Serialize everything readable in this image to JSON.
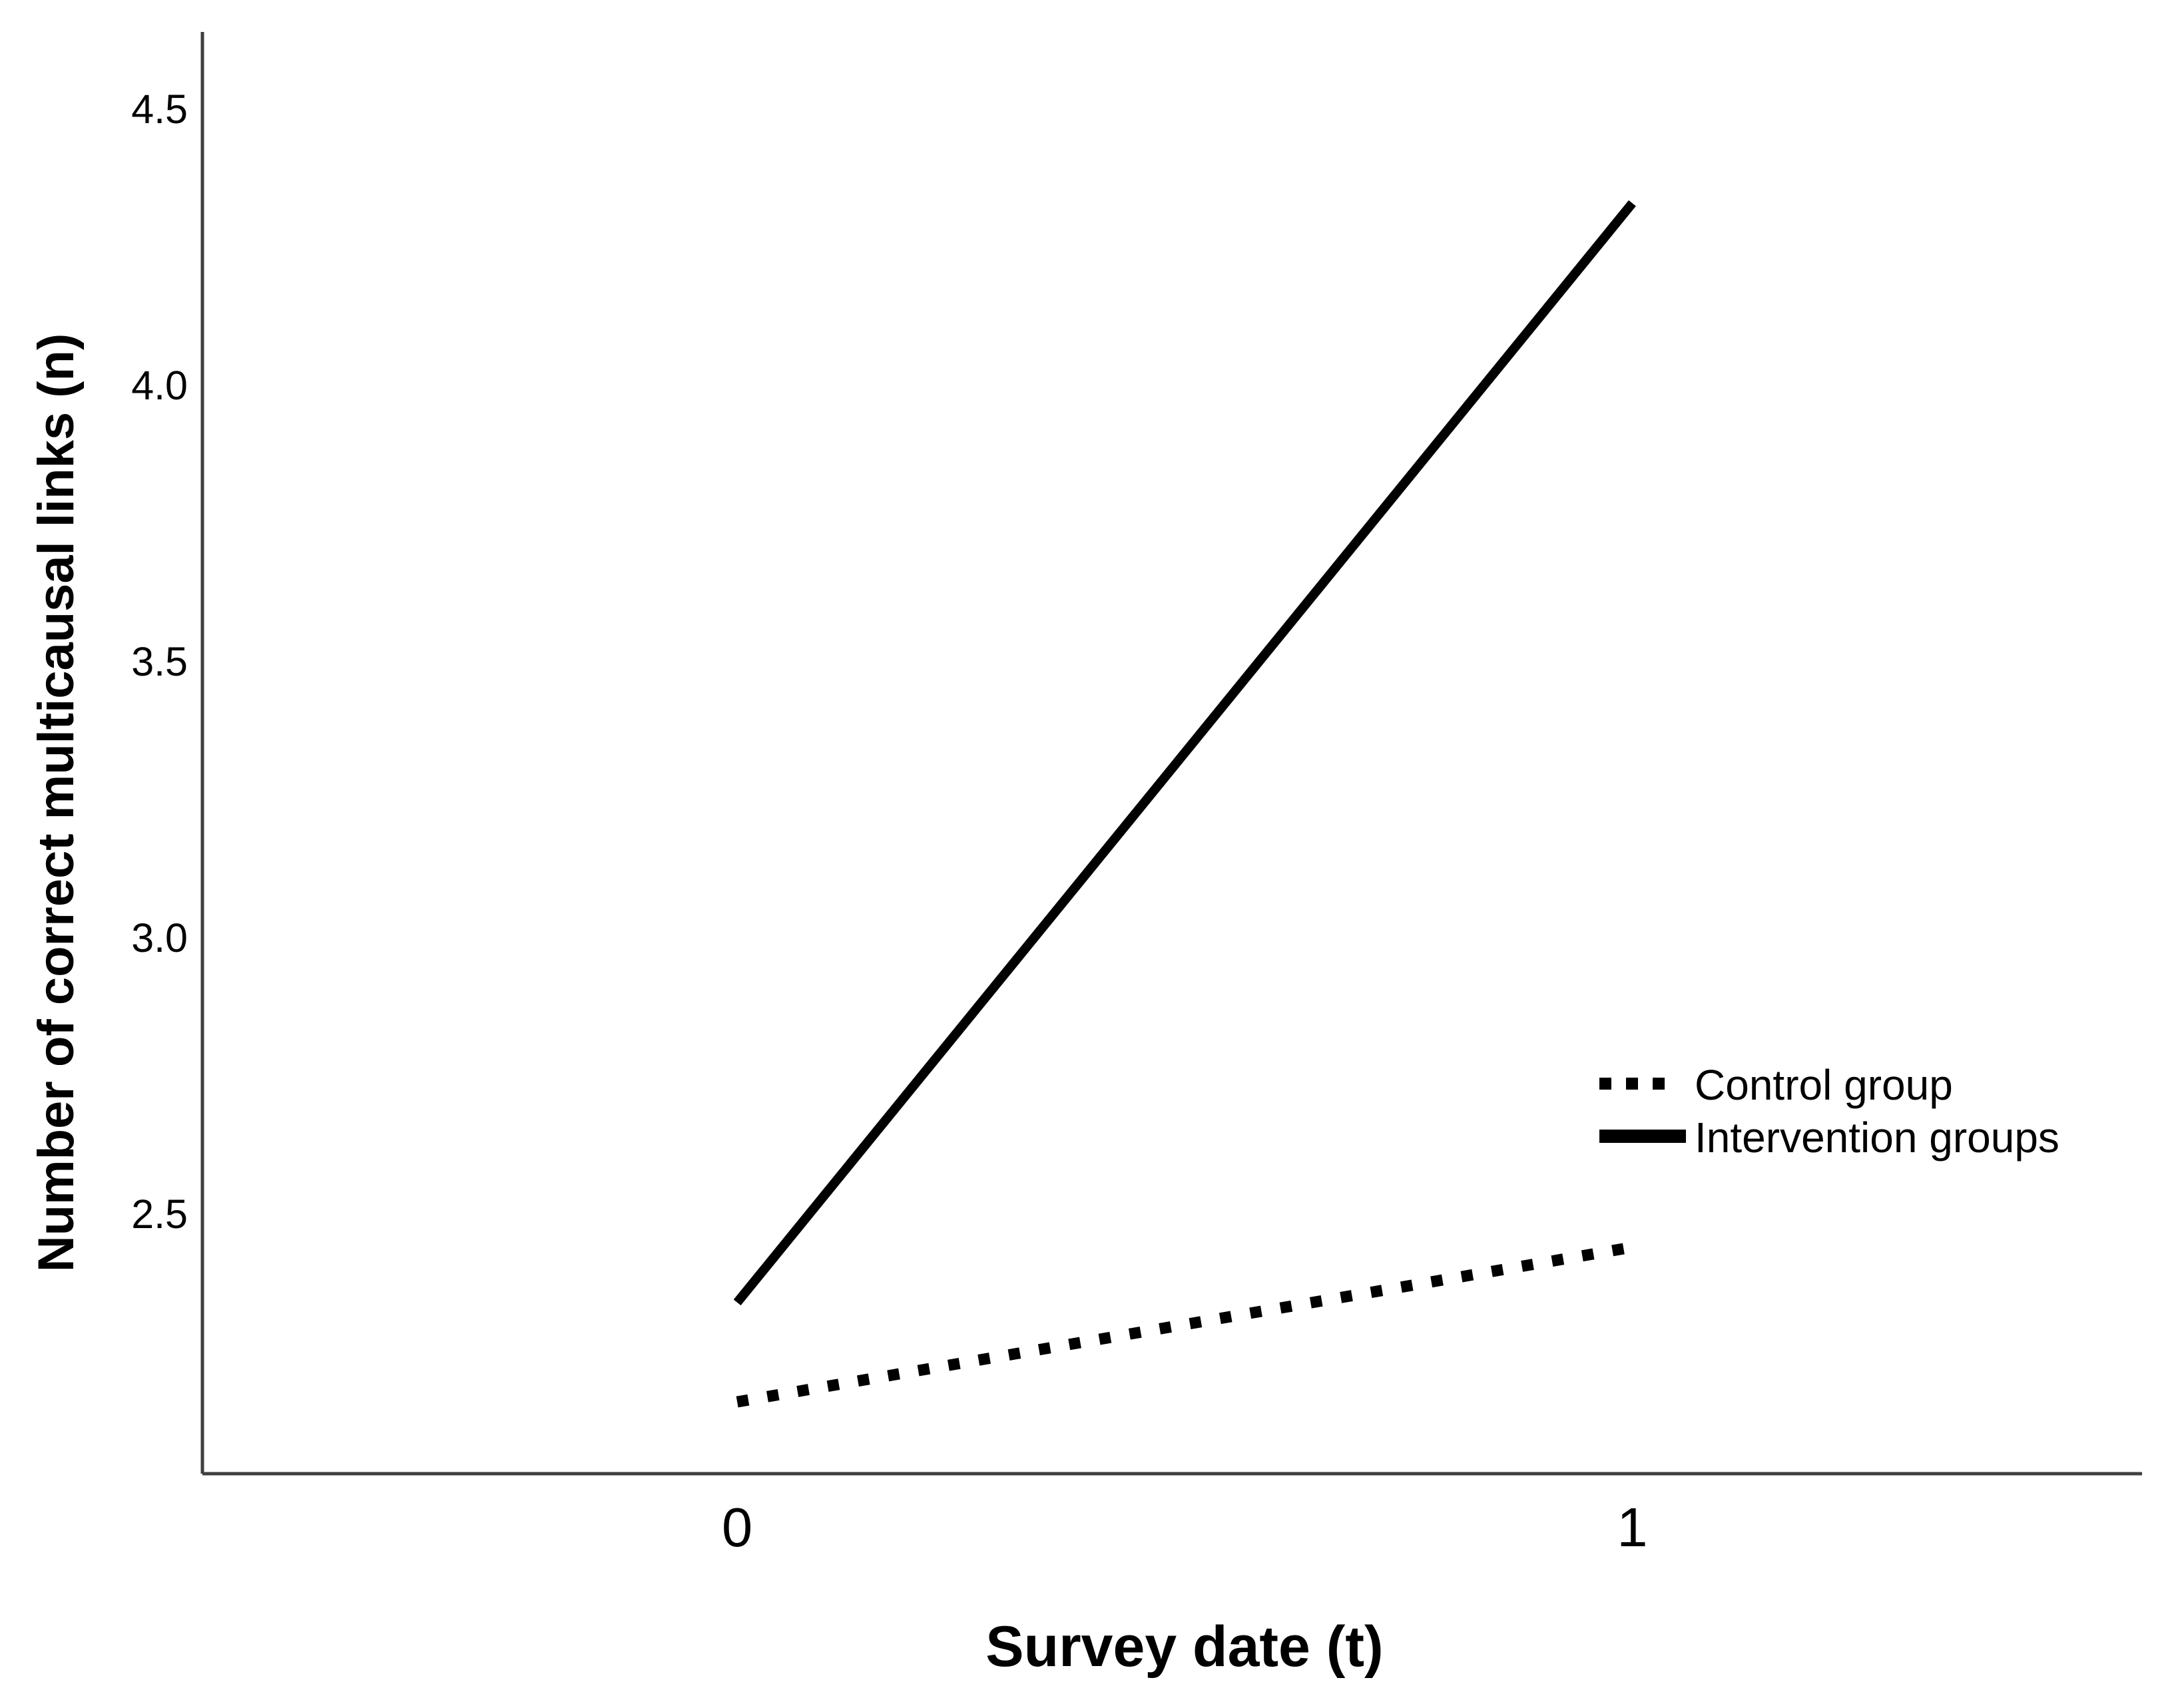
{
  "chart_data": {
    "type": "line",
    "x": [
      0,
      1
    ],
    "x_tick_labels": [
      "0",
      "1"
    ],
    "xlabel": "Survey date (t)",
    "ylabel": "Number of correct multicausal links (n)",
    "yticks": [
      2.5,
      3.0,
      3.5,
      4.0,
      4.5
    ],
    "ytick_labels": [
      "2.5",
      "3.0",
      "3.5",
      "4.0",
      "4.5"
    ],
    "ylim": [
      2.03,
      4.64
    ],
    "xlim_note": "categorical axis with two survey dates",
    "grid": false,
    "legend_position": "middle-right",
    "series": [
      {
        "name": "Control group",
        "values": [
          2.16,
          2.44
        ],
        "line_style": "dotted",
        "color": "#000000"
      },
      {
        "name": "Intervention groups",
        "values": [
          2.34,
          4.33
        ],
        "line_style": "solid",
        "color": "#000000"
      }
    ]
  },
  "colors": {
    "background": "#ffffff",
    "axis": "#3f3f3f",
    "text": "#000000",
    "line": "#000000"
  }
}
